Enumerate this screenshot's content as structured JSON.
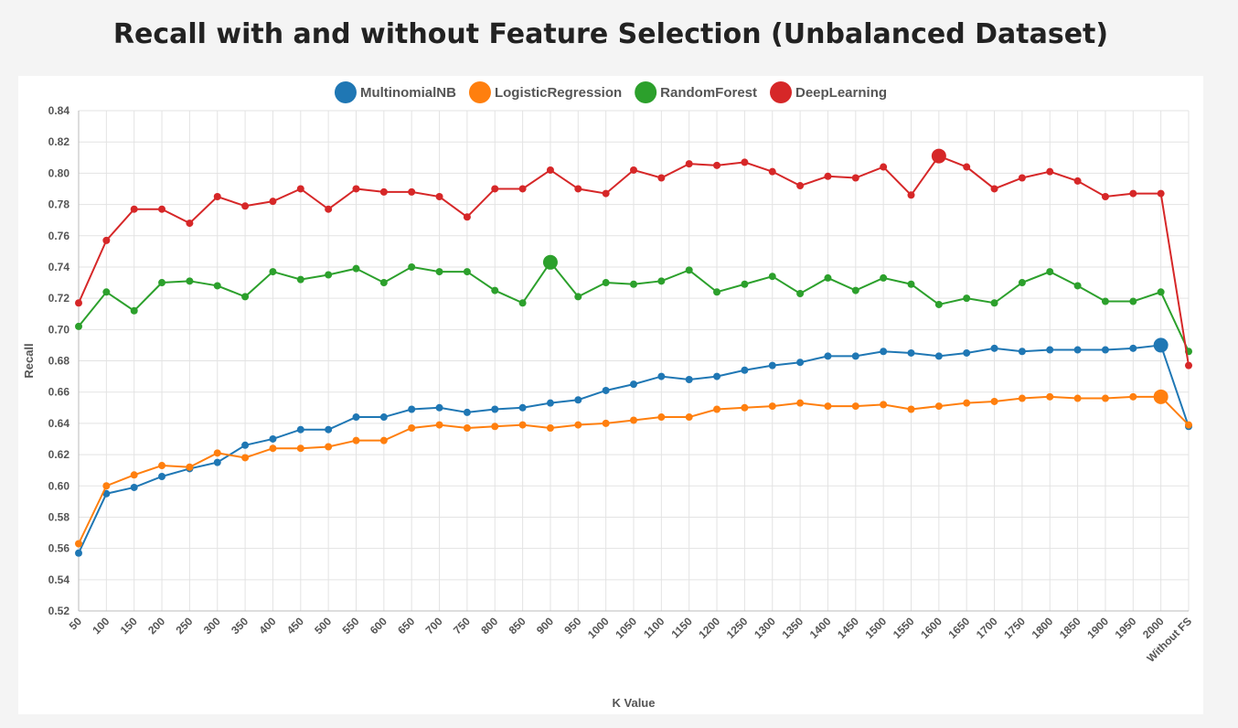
{
  "page": {
    "title": "Recall with and without Feature Selection (Unbalanced Dataset)"
  },
  "chart_data": {
    "type": "line",
    "title": "Recall with and without Feature Selection (Unbalanced Dataset)",
    "xlabel": "K Value",
    "ylabel": "Recall",
    "ylim": [
      0.52,
      0.84
    ],
    "ytick_step": 0.02,
    "grid": true,
    "legend_position": "top",
    "categories": [
      "50",
      "100",
      "150",
      "200",
      "250",
      "300",
      "350",
      "400",
      "450",
      "500",
      "550",
      "600",
      "650",
      "700",
      "750",
      "800",
      "850",
      "900",
      "950",
      "1000",
      "1050",
      "1100",
      "1150",
      "1200",
      "1250",
      "1300",
      "1350",
      "1400",
      "1450",
      "1500",
      "1550",
      "1600",
      "1650",
      "1700",
      "1750",
      "1800",
      "1850",
      "1900",
      "1950",
      "2000",
      "Without FS"
    ],
    "series": [
      {
        "name": "MultinomialNB",
        "color": "#1f77b4",
        "highlight_index": 39,
        "values": [
          0.557,
          0.595,
          0.599,
          0.606,
          0.611,
          0.615,
          0.626,
          0.63,
          0.636,
          0.636,
          0.644,
          0.644,
          0.649,
          0.65,
          0.647,
          0.649,
          0.65,
          0.653,
          0.655,
          0.661,
          0.665,
          0.67,
          0.668,
          0.67,
          0.674,
          0.677,
          0.679,
          0.683,
          0.683,
          0.686,
          0.685,
          0.683,
          0.685,
          0.688,
          0.686,
          0.687,
          0.687,
          0.687,
          0.688,
          0.69,
          0.638
        ]
      },
      {
        "name": "LogisticRegression",
        "color": "#ff7f0e",
        "highlight_index": 39,
        "values": [
          0.563,
          0.6,
          0.607,
          0.613,
          0.612,
          0.621,
          0.618,
          0.624,
          0.624,
          0.625,
          0.629,
          0.629,
          0.637,
          0.639,
          0.637,
          0.638,
          0.639,
          0.637,
          0.639,
          0.64,
          0.642,
          0.644,
          0.644,
          0.649,
          0.65,
          0.651,
          0.653,
          0.651,
          0.651,
          0.652,
          0.649,
          0.651,
          0.653,
          0.654,
          0.656,
          0.657,
          0.656,
          0.656,
          0.657,
          0.657,
          0.639
        ]
      },
      {
        "name": "RandomForest",
        "color": "#2ca02c",
        "highlight_index": 17,
        "values": [
          0.702,
          0.724,
          0.712,
          0.73,
          0.731,
          0.728,
          0.721,
          0.737,
          0.732,
          0.735,
          0.739,
          0.73,
          0.74,
          0.737,
          0.737,
          0.725,
          0.717,
          0.743,
          0.721,
          0.73,
          0.729,
          0.731,
          0.738,
          0.724,
          0.729,
          0.734,
          0.723,
          0.733,
          0.725,
          0.733,
          0.729,
          0.716,
          0.72,
          0.717,
          0.73,
          0.737,
          0.728,
          0.718,
          0.718,
          0.724,
          0.686
        ]
      },
      {
        "name": "DeepLearning",
        "color": "#d62728",
        "highlight_index": 31,
        "values": [
          0.717,
          0.757,
          0.777,
          0.777,
          0.768,
          0.785,
          0.779,
          0.782,
          0.79,
          0.777,
          0.79,
          0.788,
          0.788,
          0.785,
          0.772,
          0.79,
          0.79,
          0.802,
          0.79,
          0.787,
          0.802,
          0.797,
          0.806,
          0.805,
          0.807,
          0.801,
          0.792,
          0.798,
          0.797,
          0.804,
          0.786,
          0.811,
          0.804,
          0.79,
          0.797,
          0.801,
          0.795,
          0.785,
          0.787,
          0.787,
          0.677
        ]
      }
    ]
  }
}
